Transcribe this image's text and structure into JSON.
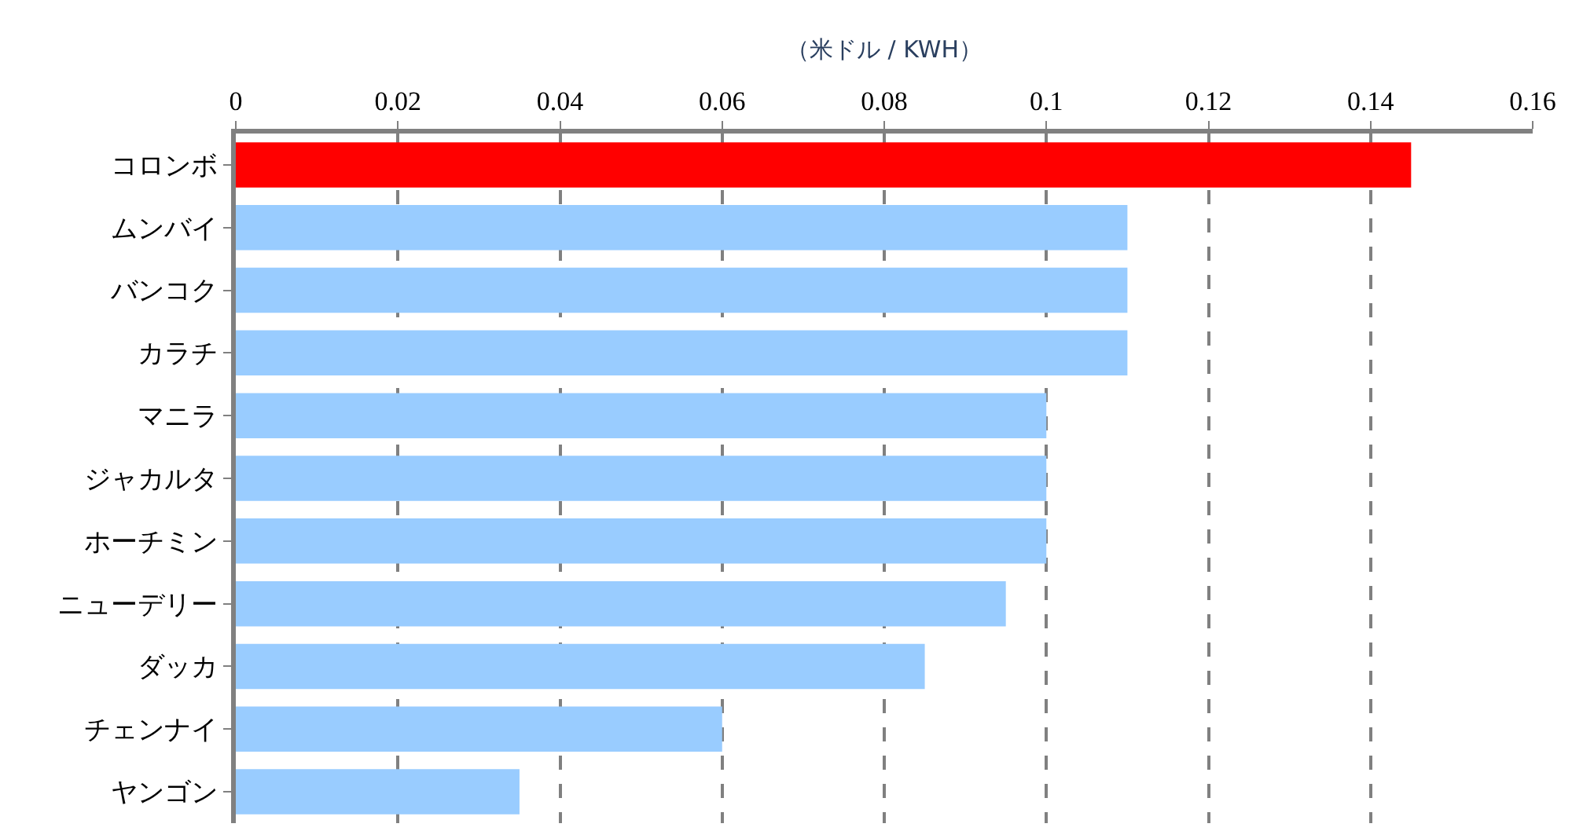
{
  "chart_data": {
    "type": "bar",
    "orientation": "horizontal",
    "xlabel": "（米ドル / KWH）",
    "categories": [
      "コロンボ",
      "ムンバイ",
      "バンコク",
      "カラチ",
      "マニラ",
      "ジャカルタ",
      "ホーチミン",
      "ニューデリー",
      "ダッカ",
      "チェンナイ",
      "ヤンゴン"
    ],
    "values": [
      0.145,
      0.11,
      0.11,
      0.11,
      0.1,
      0.1,
      0.1,
      0.095,
      0.085,
      0.06,
      0.035
    ],
    "colors": [
      "#ff0000",
      "#99ccff",
      "#99ccff",
      "#99ccff",
      "#99ccff",
      "#99ccff",
      "#99ccff",
      "#99ccff",
      "#99ccff",
      "#99ccff",
      "#99ccff"
    ],
    "xlim": [
      0,
      0.16
    ],
    "xticks": [
      0,
      0.02,
      0.04,
      0.06,
      0.08,
      0.1,
      0.12,
      0.14,
      0.16
    ],
    "grid": "x",
    "legend": false
  }
}
